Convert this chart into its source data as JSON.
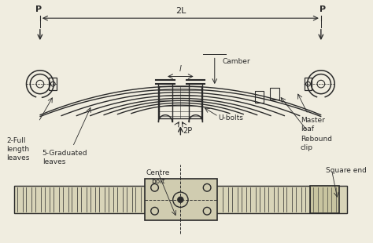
{
  "bg_color": "#f0ede0",
  "line_color": "#2a2a2a",
  "labels": {
    "P_left": "P",
    "P_right": "P",
    "2L": "2L",
    "camber": "Camber",
    "l": "l",
    "2P": "2P",
    "full_leaves": "2-Full\nlength\nleaves",
    "grad_leaves": "5-Graduated\nleaves",
    "u_bolts": "U-bolts",
    "master_leaf": "Master\nleaf",
    "rebound_clip": "Rebound\nclip",
    "centre_bolt": "Centre\nbolt",
    "square_end": "Square end"
  },
  "fig_width": 4.74,
  "fig_height": 3.1,
  "dpi": 100
}
